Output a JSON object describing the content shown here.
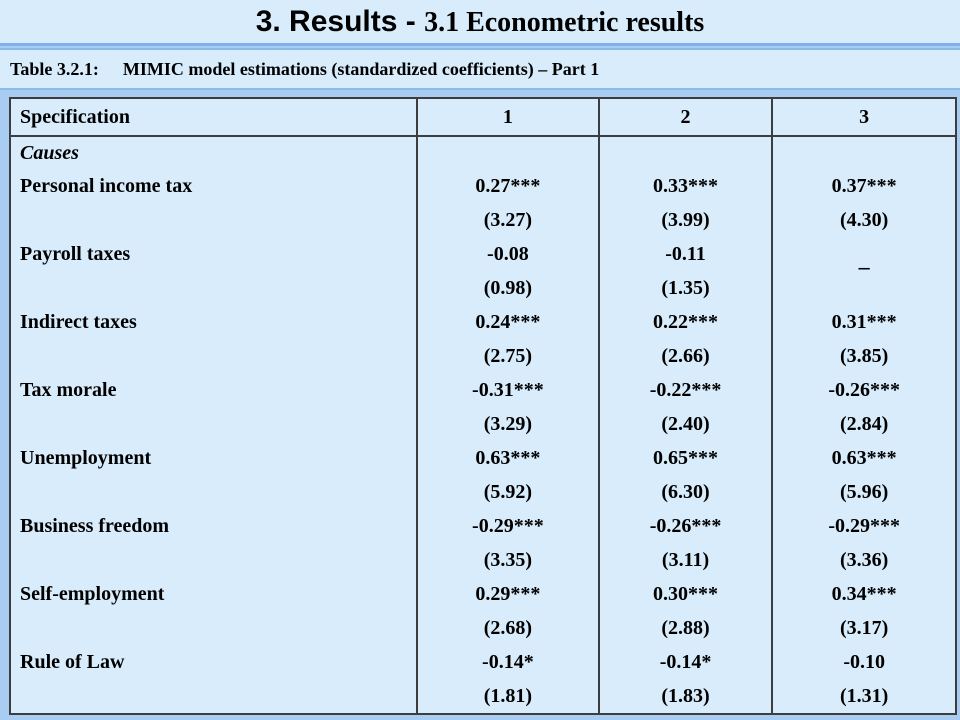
{
  "slide": {
    "title_main": "3. Results - ",
    "title_sub": "3.1 Econometric results",
    "caption_label": "Table 3.2.1:",
    "caption_text": "MIMIC model estimations (standardized coefficients) – Part 1"
  },
  "table": {
    "headers": [
      "Specification",
      "1",
      "2",
      "3"
    ],
    "category": "Causes",
    "rows": [
      {
        "label": "Personal income tax",
        "cells": [
          {
            "val": "0.27***",
            "se": "(3.27)"
          },
          {
            "val": "0.33***",
            "se": "(3.99)"
          },
          {
            "val": "0.37***",
            "se": "(4.30)"
          }
        ]
      },
      {
        "label": "Payroll taxes",
        "cells": [
          {
            "val": "-0.08",
            "se": "(0.98)"
          },
          {
            "val": "-0.11",
            "se": "(1.35)"
          },
          {
            "val": "–",
            "se": ""
          }
        ]
      },
      {
        "label": "Indirect taxes",
        "cells": [
          {
            "val": "0.24***",
            "se": "(2.75)"
          },
          {
            "val": "0.22***",
            "se": "(2.66)"
          },
          {
            "val": "0.31***",
            "se": "(3.85)"
          }
        ]
      },
      {
        "label": "Tax morale",
        "cells": [
          {
            "val": "-0.31***",
            "se": "(3.29)"
          },
          {
            "val": "-0.22***",
            "se": "(2.40)"
          },
          {
            "val": "-0.26***",
            "se": "(2.84)"
          }
        ]
      },
      {
        "label": "Unemployment",
        "cells": [
          {
            "val": "0.63***",
            "se": "(5.92)"
          },
          {
            "val": "0.65***",
            "se": "(6.30)"
          },
          {
            "val": "0.63***",
            "se": "(5.96)"
          }
        ]
      },
      {
        "label": "Business freedom",
        "cells": [
          {
            "val": "-0.29***",
            "se": "(3.35)"
          },
          {
            "val": "-0.26***",
            "se": "(3.11)"
          },
          {
            "val": "-0.29***",
            "se": "(3.36)"
          }
        ]
      },
      {
        "label": "Self-employment",
        "cells": [
          {
            "val": "0.29***",
            "se": "(2.68)"
          },
          {
            "val": "0.30***",
            "se": "(2.88)"
          },
          {
            "val": "0.34***",
            "se": "(3.17)"
          }
        ]
      },
      {
        "label": "Rule of Law",
        "cells": [
          {
            "val": "-0.14*",
            "se": "(1.81)"
          },
          {
            "val": "-0.14*",
            "se": "(1.83)"
          },
          {
            "val": "-0.10",
            "se": "(1.31)"
          }
        ]
      }
    ]
  }
}
